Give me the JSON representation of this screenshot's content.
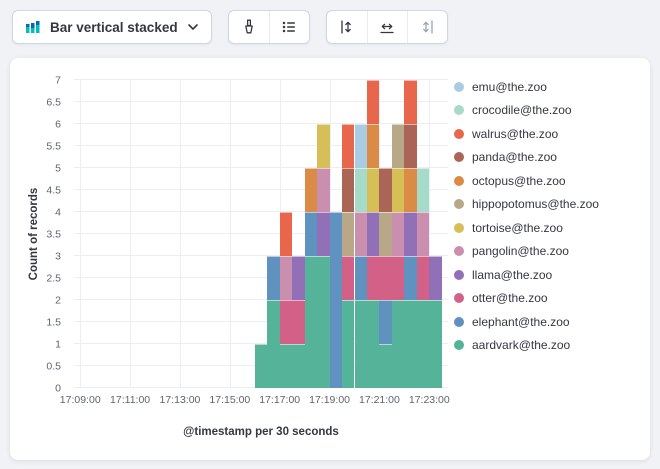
{
  "page_background": "#f0f2f6",
  "toolbar": {
    "chart_type_selector": {
      "label": "Bar vertical stacked",
      "icon": "bar-vertical-stacked-icon"
    },
    "icon_buttons": [
      {
        "name": "visual-options",
        "icon": "brush-icon"
      },
      {
        "name": "legend-settings",
        "icon": "list-icon"
      },
      {
        "name": "left-axis",
        "icon": "axis-left-icon"
      },
      {
        "name": "bottom-axis",
        "icon": "axis-bottom-icon"
      },
      {
        "name": "right-axis",
        "icon": "axis-right-icon"
      }
    ]
  },
  "chart_data": {
    "type": "bar",
    "stacked": true,
    "orientation": "vertical",
    "xlabel": "@timestamp per 30 seconds",
    "ylabel": "Count of records",
    "ylim": [
      0,
      7
    ],
    "y_ticks": [
      0,
      0.5,
      1,
      1.5,
      2,
      2.5,
      3,
      3.5,
      4,
      4.5,
      5,
      5.5,
      6,
      6.5,
      7
    ],
    "x_domain": {
      "start_label": "17:08:45",
      "total_seconds": 900
    },
    "x_ticks": [
      {
        "label": "17:09:00",
        "offset_s": 15
      },
      {
        "label": "17:11:00",
        "offset_s": 135
      },
      {
        "label": "17:13:00",
        "offset_s": 255
      },
      {
        "label": "17:15:00",
        "offset_s": 375
      },
      {
        "label": "17:17:00",
        "offset_s": 495
      },
      {
        "label": "17:19:00",
        "offset_s": 615
      },
      {
        "label": "17:21:00",
        "offset_s": 735
      },
      {
        "label": "17:23:00",
        "offset_s": 855
      }
    ],
    "buckets": {
      "start_offset_s": 435,
      "interval_s": 30,
      "times": [
        "17:16:00",
        "17:16:30",
        "17:17:00",
        "17:17:30",
        "17:18:00",
        "17:18:30",
        "17:19:00",
        "17:19:30",
        "17:20:00",
        "17:20:30",
        "17:21:00",
        "17:21:30",
        "17:22:00",
        "17:22:30",
        "17:23:00"
      ]
    },
    "totals": [
      1,
      3,
      4,
      3,
      5,
      6,
      4,
      6,
      6,
      7,
      5,
      6,
      7,
      5,
      3
    ],
    "series": [
      {
        "name": "aardvark@the.zoo",
        "color": "#54B399",
        "values": [
          1,
          2,
          1,
          1,
          3,
          3,
          0,
          2,
          2,
          2,
          1,
          2,
          2,
          2,
          2
        ]
      },
      {
        "name": "elephant@the.zoo",
        "color": "#6092C0",
        "values": [
          0,
          1,
          0,
          0,
          1,
          0,
          4,
          0,
          1,
          0,
          1,
          0,
          1,
          0,
          0
        ]
      },
      {
        "name": "otter@the.zoo",
        "color": "#D36086",
        "values": [
          0,
          0,
          1,
          1,
          0,
          0,
          0,
          1,
          0,
          1,
          1,
          1,
          0,
          1,
          0
        ]
      },
      {
        "name": "llama@the.zoo",
        "color": "#9170B8",
        "values": [
          0,
          0,
          0,
          1,
          0,
          1,
          0,
          0,
          0,
          1,
          0,
          0,
          1,
          0,
          1
        ]
      },
      {
        "name": "pangolin@the.zoo",
        "color": "#CA8EAE",
        "values": [
          0,
          0,
          1,
          0,
          0,
          1,
          0,
          0,
          1,
          0,
          0,
          1,
          0,
          1,
          0
        ]
      },
      {
        "name": "tortoise@the.zoo",
        "color": "#D6BF57",
        "values": [
          0,
          0,
          0,
          0,
          0,
          1,
          0,
          0,
          0,
          1,
          0,
          1,
          0,
          0,
          0
        ]
      },
      {
        "name": "hippopotomus@the.zoo",
        "color": "#B9A888",
        "values": [
          0,
          0,
          0,
          0,
          0,
          0,
          0,
          1,
          0,
          0,
          1,
          1,
          0,
          0,
          0
        ]
      },
      {
        "name": "octopus@the.zoo",
        "color": "#DA8B45",
        "values": [
          0,
          0,
          0,
          0,
          1,
          0,
          0,
          0,
          0,
          1,
          0,
          0,
          1,
          0,
          0
        ]
      },
      {
        "name": "panda@the.zoo",
        "color": "#AA6556",
        "values": [
          0,
          0,
          0,
          0,
          0,
          0,
          0,
          1,
          0,
          0,
          1,
          0,
          1,
          0,
          0
        ]
      },
      {
        "name": "walrus@the.zoo",
        "color": "#E7664C",
        "values": [
          0,
          0,
          1,
          0,
          0,
          0,
          0,
          1,
          0,
          1,
          0,
          0,
          1,
          0,
          0
        ]
      },
      {
        "name": "crocodile@the.zoo",
        "color": "#A5DBC8",
        "values": [
          0,
          0,
          0,
          0,
          0,
          0,
          0,
          0,
          1,
          0,
          0,
          0,
          0,
          1,
          0
        ]
      },
      {
        "name": "emu@the.zoo",
        "color": "#A9CCE3",
        "values": [
          0,
          0,
          0,
          0,
          0,
          0,
          0,
          0,
          1,
          0,
          0,
          0,
          0,
          0,
          0
        ]
      }
    ],
    "legend_position": "right",
    "grid": true
  }
}
